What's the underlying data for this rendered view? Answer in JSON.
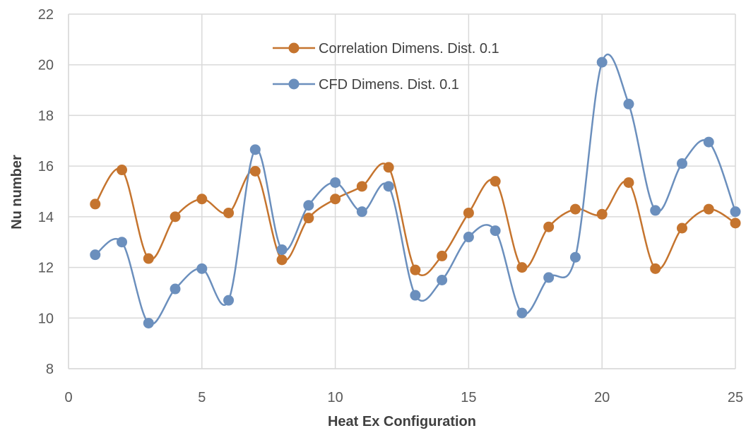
{
  "chart_data": {
    "type": "line",
    "title": "",
    "xlabel": "Heat Ex Configuration",
    "ylabel": "Nu number",
    "xlim": [
      0,
      25
    ],
    "ylim": [
      8,
      22
    ],
    "x_ticks": [
      0,
      5,
      10,
      15,
      20,
      25
    ],
    "y_ticks": [
      8,
      10,
      12,
      14,
      16,
      18,
      20,
      22
    ],
    "grid": true,
    "legend_position": "top-center",
    "x": [
      1,
      2,
      3,
      4,
      5,
      6,
      7,
      8,
      9,
      10,
      11,
      12,
      13,
      14,
      15,
      16,
      17,
      18,
      19,
      20,
      21,
      22,
      23,
      24,
      25
    ],
    "series": [
      {
        "name": "Correlation Dimens. Dist. 0.1",
        "color": "#c5742e",
        "values": [
          14.5,
          15.85,
          12.35,
          14.0,
          14.7,
          14.15,
          15.8,
          12.3,
          13.95,
          14.7,
          15.2,
          15.95,
          11.9,
          12.45,
          14.15,
          15.4,
          12.0,
          13.6,
          14.3,
          14.1,
          15.35,
          11.95,
          13.55,
          14.3,
          13.75
        ]
      },
      {
        "name": "CFD Dimens. Dist. 0.1",
        "color": "#6b8fbd",
        "values": [
          12.5,
          13.0,
          9.8,
          11.15,
          11.95,
          10.7,
          16.65,
          12.7,
          14.45,
          15.35,
          14.2,
          15.2,
          10.9,
          11.5,
          13.2,
          13.45,
          10.2,
          11.6,
          12.4,
          20.1,
          18.45,
          14.25,
          16.1,
          16.95,
          14.2
        ]
      }
    ]
  }
}
